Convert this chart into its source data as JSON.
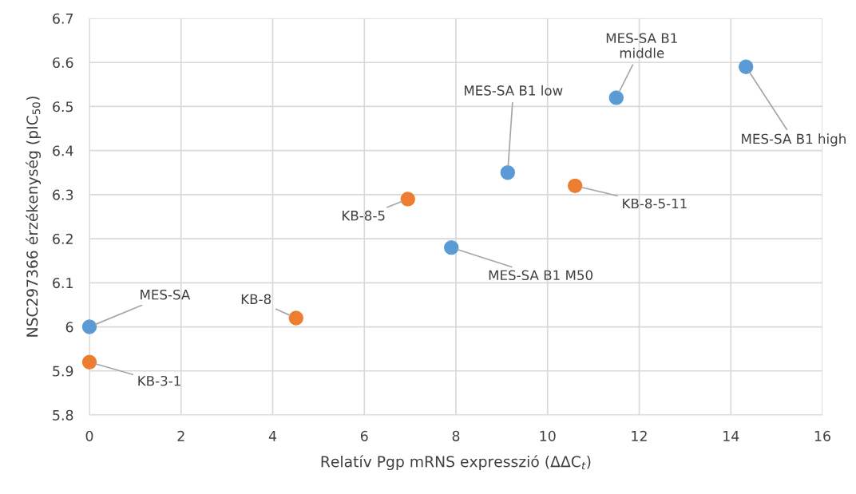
{
  "chart_data": {
    "type": "scatter",
    "xlabel": "Relatív Pgp mRNS expresszió (ΔΔC$_{t}$)",
    "ylabel": "NSC297366 érzékenység (pIC$_{50}$)",
    "xlim": [
      0,
      16
    ],
    "xticks": [
      0,
      2,
      4,
      6,
      8,
      10,
      12,
      14,
      16
    ],
    "ylim": [
      5.8,
      6.7
    ],
    "yticks": [
      {
        "value": 5.8,
        "label": "5.8"
      },
      {
        "value": 5.9,
        "label": "5.9"
      },
      {
        "value": 6.0,
        "label": "6"
      },
      {
        "value": 6.1,
        "label": "6.1"
      },
      {
        "value": 6.2,
        "label": "6.2"
      },
      {
        "value": 6.3,
        "label": "6.3"
      },
      {
        "value": 6.4,
        "label": "6.4"
      },
      {
        "value": 6.5,
        "label": "6.5"
      },
      {
        "value": 6.6,
        "label": "6.6"
      },
      {
        "value": 6.7,
        "label": "6.7"
      }
    ],
    "grid": true,
    "marker": "circle",
    "series": [
      {
        "color": "#5b9bd5",
        "x": [
          0,
          7.9,
          9.13,
          11.5,
          14.33
        ],
        "values": [
          6.0,
          6.18,
          6.35,
          6.52,
          6.59
        ]
      },
      {
        "color": "#ed7d31",
        "x": [
          0,
          4.51,
          6.95,
          10.6
        ],
        "values": [
          5.92,
          6.02,
          6.29,
          6.32
        ]
      }
    ],
    "annotations": [
      {
        "text": "MES-SA",
        "x": 0,
        "y": 6.0
      },
      {
        "text": "KB-3-1",
        "x": 0,
        "y": 5.92
      },
      {
        "text": "KB-8",
        "x": 4.51,
        "y": 6.02
      },
      {
        "text": "KB-8-5",
        "x": 6.95,
        "y": 6.29
      },
      {
        "text": "MES-SA B1 M50",
        "x": 7.9,
        "y": 6.18
      },
      {
        "text": "MES-SA B1 low",
        "x": 9.13,
        "y": 6.35
      },
      {
        "text": "KB-8-5-11",
        "x": 10.6,
        "y": 6.32
      },
      {
        "text": "MES-SA B1\nmiddle",
        "x": 11.5,
        "y": 6.52
      },
      {
        "text": "MES-SA B1 high",
        "x": 14.33,
        "y": 6.59
      }
    ]
  }
}
